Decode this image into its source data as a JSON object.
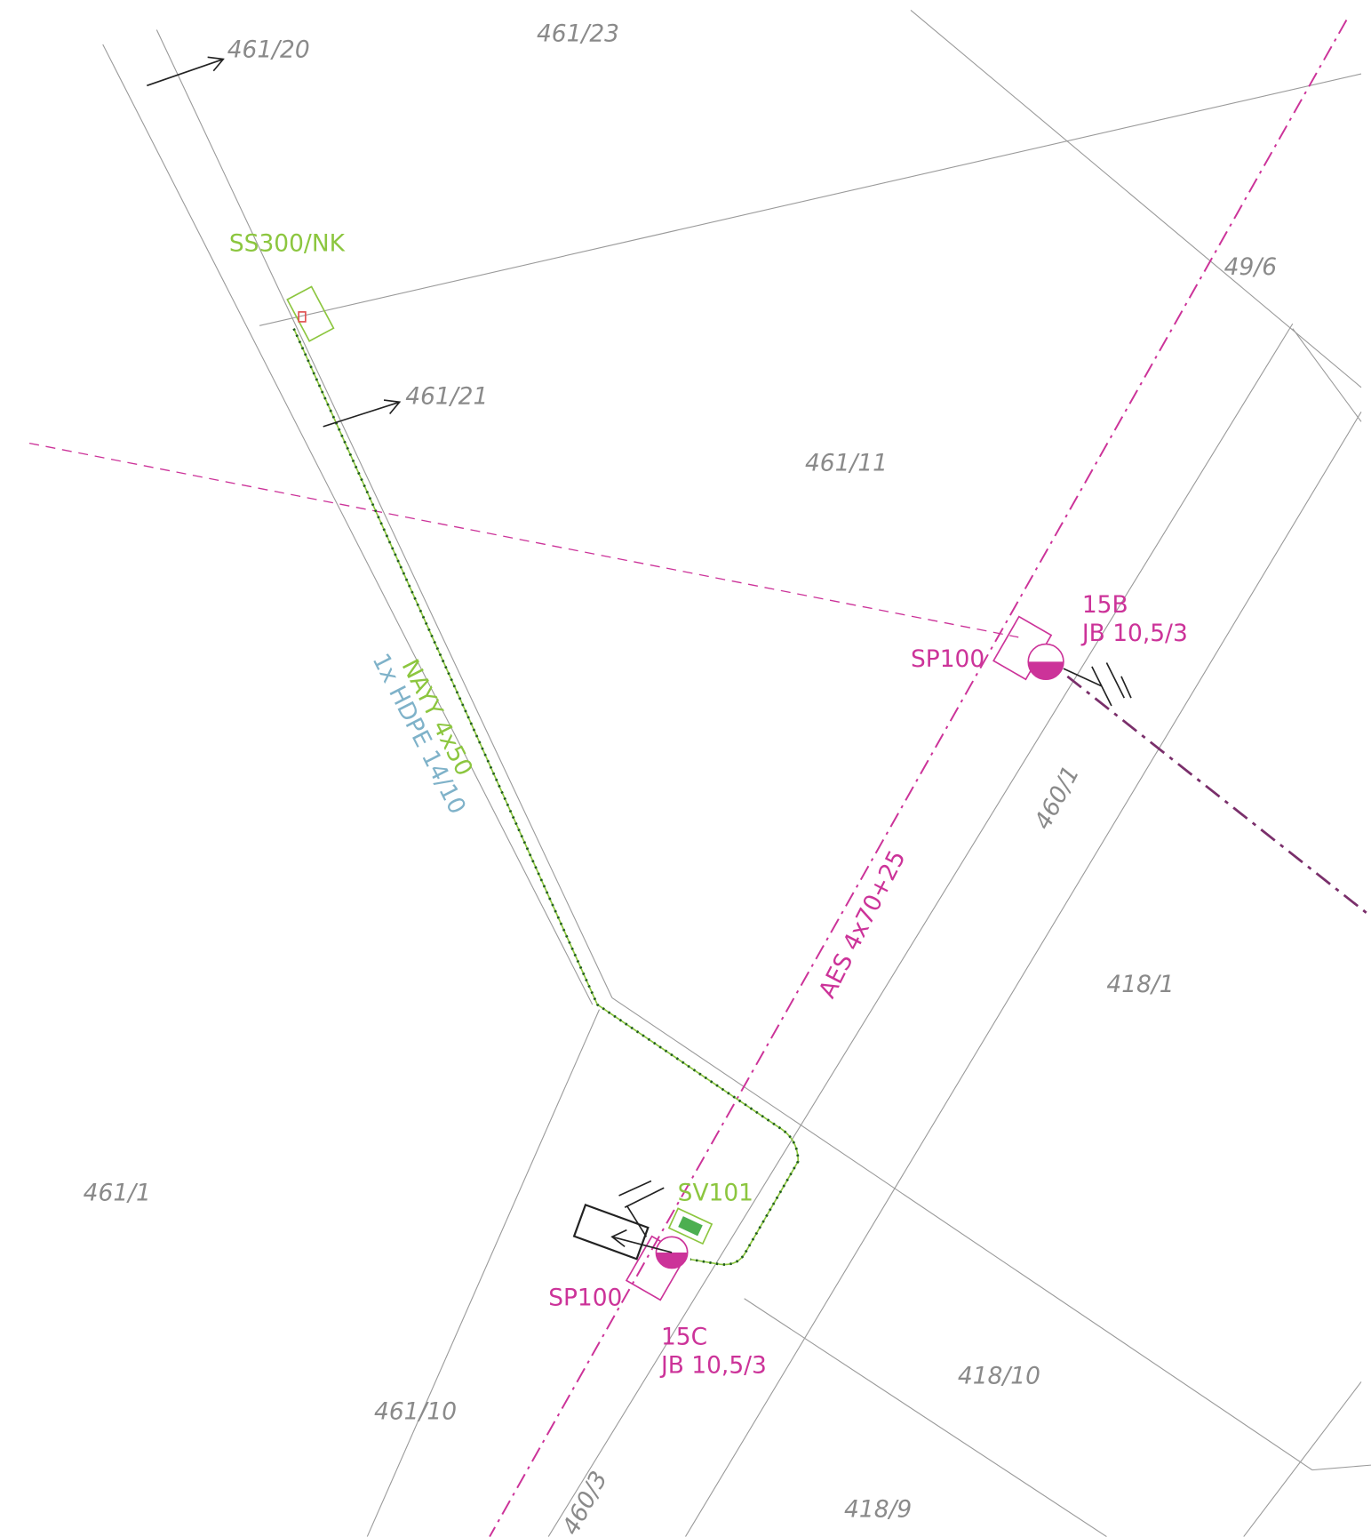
{
  "parcels": [
    "461/20",
    "461/23",
    "49/6",
    "461/21",
    "461/11",
    "460/1",
    "418/1",
    "461/1",
    "418/10",
    "461/10",
    "460/3",
    "418/9"
  ],
  "equipment": {
    "cabinet": "SS300/NK",
    "pole_15b": {
      "number": "15B",
      "type": "JB 10,5/3",
      "box": "SP100"
    },
    "pole_15c": {
      "number": "15C",
      "type": "JB 10,5/3",
      "box": "SP100",
      "distribution": "SV101"
    }
  },
  "cables": {
    "ground_cable": "NAYY 4x50",
    "duct": "1x HDPE 14/10",
    "overhead_line": "AES 4x70+25"
  }
}
